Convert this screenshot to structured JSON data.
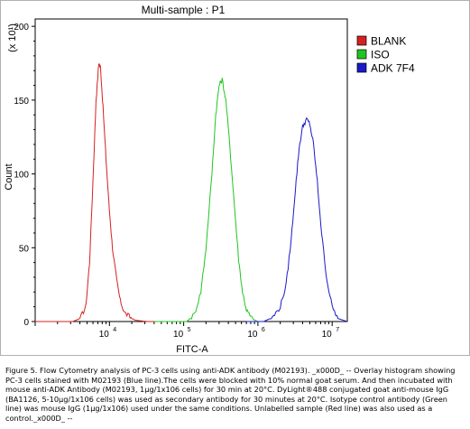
{
  "chart_data": {
    "type": "line",
    "title": "Multi-sample : P1",
    "xlabel": "FITC-A",
    "ylabel": "Count",
    "y_multiplier": "(x 10¹)",
    "x_scale": "log",
    "xlim": [
      1000,
      16000000
    ],
    "ylim": [
      0,
      205
    ],
    "x_ticks": [
      {
        "value": 10000,
        "base": "10",
        "exp": "4"
      },
      {
        "value": 100000,
        "base": "10",
        "exp": "5"
      },
      {
        "value": 1000000,
        "base": "10",
        "exp": "6"
      },
      {
        "value": 10000000,
        "base": "10",
        "exp": "7"
      }
    ],
    "y_ticks": [
      0,
      50,
      100,
      150,
      200
    ],
    "legend_position": "right",
    "series": [
      {
        "name": "BLANK",
        "color": "#d62020",
        "x": [
          1000,
          3200,
          4000,
          4800,
          5400,
          6000,
          6600,
          7200,
          7600,
          8200,
          9000,
          10000,
          11000,
          12500,
          14000,
          16000,
          19000,
          22000,
          26000,
          32000,
          40000
        ],
        "y": [
          0,
          0,
          2,
          10,
          40,
          95,
          150,
          175,
          172,
          145,
          110,
          75,
          50,
          28,
          14,
          6,
          3,
          1,
          0.5,
          0,
          0
        ]
      },
      {
        "name": "ISO",
        "color": "#22c422",
        "x": [
          40000,
          110000,
          140000,
          170000,
          200000,
          240000,
          270000,
          300000,
          330000,
          370000,
          420000,
          480000,
          550000,
          620000,
          700000,
          800000,
          900000,
          1000000
        ],
        "y": [
          0,
          0,
          5,
          20,
          50,
          100,
          140,
          160,
          164,
          150,
          118,
          80,
          42,
          20,
          8,
          3,
          1,
          0
        ]
      },
      {
        "name": "ADK 7F4",
        "color": "#1a1ac8",
        "x": [
          700000,
          1200000,
          1600000,
          2000000,
          2400000,
          2800000,
          3200000,
          3600000,
          4000000,
          4500000,
          5000000,
          5600000,
          6300000,
          7200000,
          8500000,
          10000000,
          12000000,
          16000000
        ],
        "y": [
          0,
          0,
          3,
          10,
          25,
          55,
          90,
          118,
          132,
          137,
          134,
          120,
          95,
          60,
          28,
          10,
          2,
          0
        ]
      }
    ]
  },
  "caption": "Figure 5. Flow Cytometry analysis of PC-3 cells using anti-ADK antibody (M02193). _x000D_ -- Overlay histogram showing PC-3 cells stained with M02193 (Blue line).The cells were blocked with 10% normal goat serum. And then incubated with mouse anti-ADK Antibody (M02193, 1μg/1x106 cells) for 30 min at 20°C. DyLight®488 conjugated goat anti-mouse IgG (BA1126, 5-10μg/1x106 cells) was used as secondary antibody for 30 minutes at 20°C. Isotype control antibody (Green line) was mouse IgG (1μg/1x106) used under the same conditions. Unlabelled sample (Red line) was also used as a control._x000D_ --"
}
